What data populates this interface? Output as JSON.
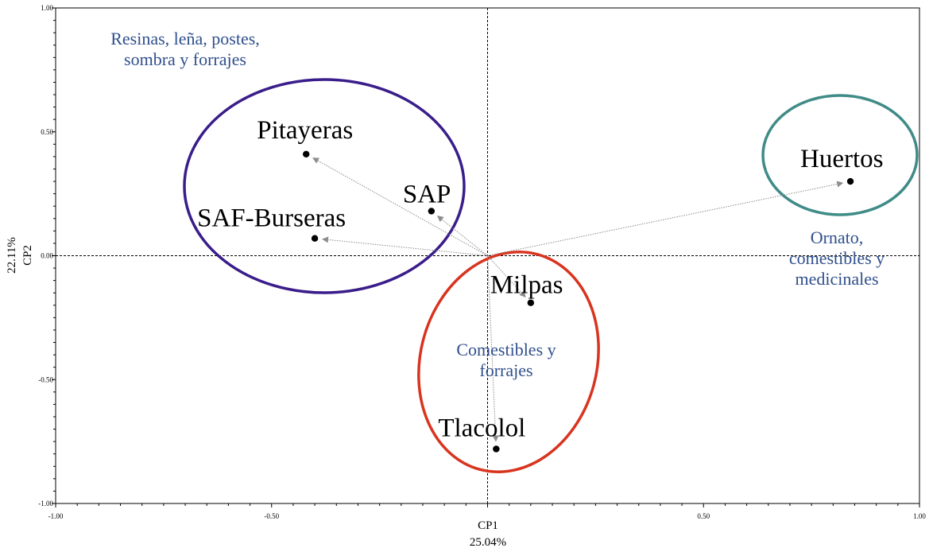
{
  "chart_data": {
    "type": "scatter",
    "title": "",
    "xlabel": "CP1",
    "xlabel_pct": "25.04%",
    "ylabel": "CP2",
    "ylabel_pct": "22.11%",
    "xlim": [
      -1.0,
      1.0
    ],
    "ylim": [
      -1.0,
      1.0
    ],
    "x_ticks": [
      "-1.00",
      "-0.50",
      "0.50",
      "1.00"
    ],
    "x_tick_values": [
      -1.0,
      -0.5,
      0.5,
      1.0
    ],
    "y_ticks": [
      "1.00",
      "0.50",
      "0.00",
      "-0.50",
      "-1.00"
    ],
    "y_tick_values": [
      1.0,
      0.5,
      0.0,
      -0.5,
      -1.0
    ],
    "grid": false,
    "points": [
      {
        "label": "Pitayeras",
        "x": -0.42,
        "y": 0.41
      },
      {
        "label": "SAP",
        "x": -0.13,
        "y": 0.18
      },
      {
        "label": "SAF-Burseras",
        "x": -0.4,
        "y": 0.07
      },
      {
        "label": "Huertos",
        "x": 0.84,
        "y": 0.3
      },
      {
        "label": "Milpas",
        "x": 0.1,
        "y": -0.19
      },
      {
        "label": "Tlacolol",
        "x": 0.02,
        "y": -0.78
      }
    ],
    "groups": [
      {
        "text_lines": [
          "Resinas, leña, postes,",
          "sombra y forrajes"
        ],
        "members": [
          "Pitayeras",
          "SAP",
          "SAF-Burseras"
        ],
        "color": "#3a1d8a"
      },
      {
        "text_lines": [
          "Ornato,",
          "comestibles y",
          "medicinales"
        ],
        "members": [
          "Huertos"
        ],
        "color": "#3f8b87"
      },
      {
        "text_lines": [
          "Comestibles y",
          "forrajes"
        ],
        "members": [
          "Milpas",
          "Tlacolol"
        ],
        "color": "#d8341f"
      }
    ],
    "label_color": "#2f4f8c",
    "vector_color": "#8c8c8c"
  }
}
